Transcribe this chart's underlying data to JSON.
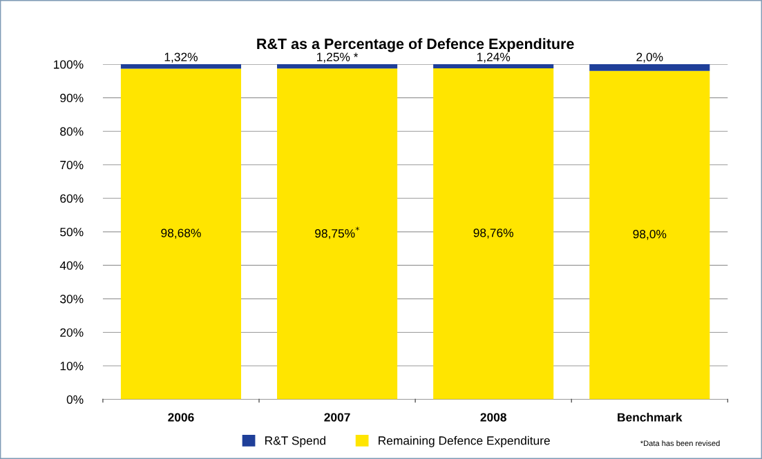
{
  "chart_data": {
    "type": "bar",
    "stacked": true,
    "title": "R&T as a Percentage of Defence Expenditure",
    "categories": [
      "2006",
      "2007",
      "2008",
      "Benchmark"
    ],
    "series": [
      {
        "name": "Remaining Defence Expenditure",
        "color": "#ffe500",
        "values": [
          98.68,
          98.75,
          98.76,
          98.0
        ],
        "value_labels": [
          "98,68%",
          "98,75%$^{*}$",
          "98,76%",
          "98,0%"
        ]
      },
      {
        "name": "R&T Spend",
        "color": "#1f3f99",
        "values": [
          1.32,
          1.25,
          1.24,
          2.0
        ],
        "value_labels": [
          "1,32%",
          "1,25% *",
          "1,24%",
          "2,0%"
        ]
      }
    ],
    "ylim": [
      0,
      100
    ],
    "yticks": [
      {
        "value": 0,
        "label": "0%"
      },
      {
        "value": 10,
        "label": "10%"
      },
      {
        "value": 20,
        "label": "20%"
      },
      {
        "value": 30,
        "label": "30%"
      },
      {
        "value": 40,
        "label": "40%"
      },
      {
        "value": 50,
        "label": "50%"
      },
      {
        "value": 60,
        "label": "60%"
      },
      {
        "value": 70,
        "label": "70%"
      },
      {
        "value": 80,
        "label": "80%"
      },
      {
        "value": 90,
        "label": "90%"
      },
      {
        "value": 100,
        "label": "100%"
      }
    ],
    "grid": "y",
    "legend": "bottom",
    "annotations": [
      "*Data has been revised"
    ]
  }
}
